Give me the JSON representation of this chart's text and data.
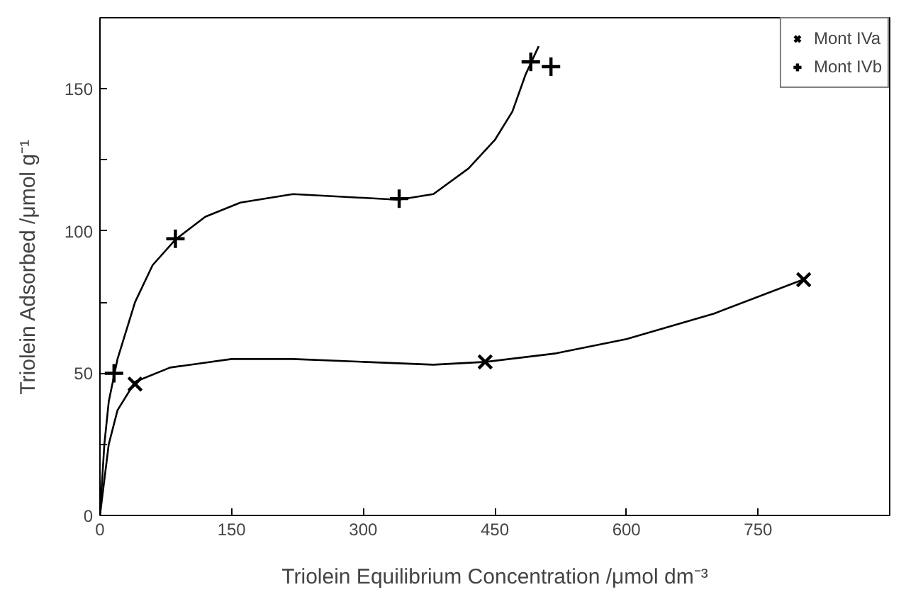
{
  "chart_data": {
    "type": "scatter",
    "xlabel": "Triolein Equilibrium Concentration /μmol dm⁻³",
    "ylabel": "Triolein Adsorbed /μmol g⁻¹",
    "xlim": [
      0,
      900
    ],
    "ylim": [
      0,
      175
    ],
    "xticks": [
      0,
      150,
      300,
      450,
      600,
      750
    ],
    "yticks": [
      0,
      {
        "value": 25,
        "label": null
      },
      50,
      {
        "value": 75,
        "label": null
      },
      100,
      {
        "value": 125,
        "label": null
      },
      150
    ],
    "grid": false,
    "legend": "top right",
    "series": [
      {
        "name": "Mont IVa",
        "marker": "x",
        "color": "#000000",
        "x": [
          40,
          439,
          802
        ],
        "values": [
          46.2,
          54,
          82.9
        ]
      },
      {
        "name": "Mont IVb",
        "marker": "cross",
        "color": "#000000",
        "x": [
          16,
          86,
          341,
          491,
          514
        ],
        "values": [
          50,
          97.3,
          111.4,
          159.5,
          157.8
        ]
      },
      {
        "type": "line",
        "marker": "none",
        "color": "#000000",
        "x": [
          0,
          5,
          10,
          20,
          40,
          60,
          86,
          120,
          160,
          220,
          280,
          340,
          380,
          420,
          450,
          470,
          485,
          500
        ],
        "values": [
          0,
          25,
          40,
          55,
          75,
          88,
          97,
          105,
          110,
          113,
          112,
          111,
          113,
          122,
          132,
          142,
          155,
          165
        ]
      },
      {
        "type": "line",
        "marker": "none",
        "color": "#000000",
        "x": [
          0,
          10,
          20,
          40,
          80,
          150,
          220,
          300,
          380,
          440,
          520,
          600,
          700,
          802
        ],
        "values": [
          0,
          25,
          37,
          47,
          52,
          55,
          55,
          54,
          53,
          54,
          57,
          62,
          71,
          83
        ]
      }
    ]
  }
}
